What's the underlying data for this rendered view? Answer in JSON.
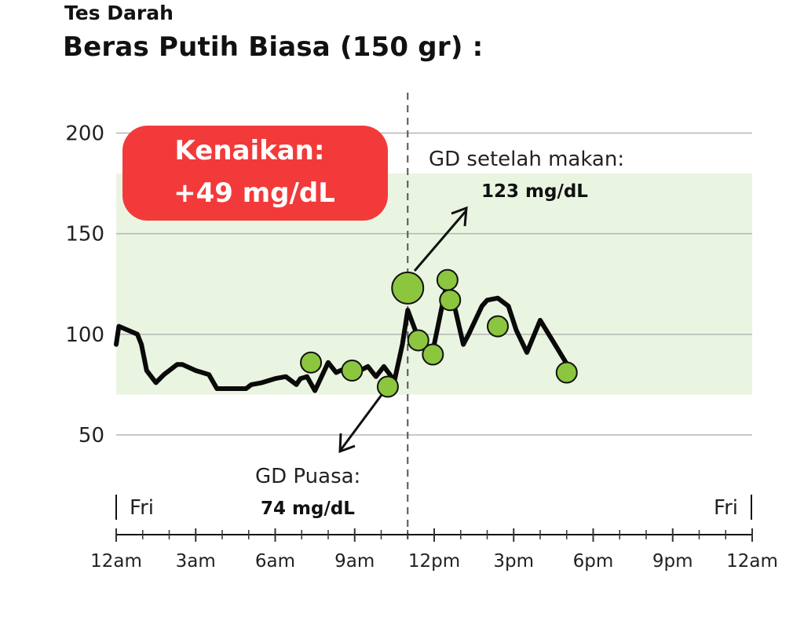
{
  "header": {
    "supertitle": "Tes Darah",
    "title": "Beras Putih Biasa (150 gr) :"
  },
  "colors": {
    "line": "#0a0a0a",
    "marker_fill": "#8cc63f",
    "target_band": "#eaf5e1",
    "badge": "#f23a3a",
    "grid": "#b5b5b5"
  },
  "chart_data": {
    "type": "line",
    "title": "Beras Putih Biasa (150 gr) :",
    "xlabel": "",
    "ylabel": "",
    "ylim": [
      40,
      200
    ],
    "yticks": [
      50,
      100,
      150,
      200
    ],
    "ytick_labels": [
      "50",
      "100",
      "150",
      "200"
    ],
    "xlim": [
      0,
      24
    ],
    "xticks": [
      0,
      3,
      6,
      9,
      12,
      15,
      18,
      21,
      24
    ],
    "xtick_labels": [
      "12am",
      "3am",
      "6am",
      "9am",
      "12pm",
      "3pm",
      "6pm",
      "9pm",
      "12am"
    ],
    "day_labels": [
      "Fri",
      "Fri"
    ],
    "grid": true,
    "target_range": [
      70,
      180
    ],
    "meal_time": 11.0,
    "series": [
      {
        "x": [
          0,
          0.1,
          0.8,
          0.95,
          1.15,
          1.5,
          1.8,
          2.3,
          2.5,
          3,
          3.5,
          3.8,
          4.1,
          4.5,
          4.9,
          5.1,
          5.5,
          6,
          6.4,
          6.8,
          6.95,
          7.2,
          7.5,
          8,
          8.3,
          8.8,
          9.2,
          9.5,
          9.8,
          10.1,
          10.5,
          10.8,
          11.0,
          11.4,
          11.75,
          12.0,
          12.5,
          12.8,
          13.1,
          13.3,
          13.8,
          14.0,
          14.4,
          14.8,
          15.1,
          15.5,
          16.0,
          16.6,
          17.2
        ],
        "values": [
          95,
          104,
          100,
          95,
          82,
          76,
          80,
          85,
          85,
          82,
          80,
          73,
          73,
          73,
          73,
          75,
          76,
          78,
          79,
          75,
          78,
          79,
          72,
          86,
          81,
          84,
          82,
          84,
          79,
          84,
          77,
          95,
          112,
          98,
          90,
          95,
          127,
          112,
          95,
          100,
          114,
          117,
          118,
          114,
          102,
          91,
          107,
          94,
          81
        ]
      }
    ],
    "markers": [
      {
        "x": 7.35,
        "y": 86
      },
      {
        "x": 8.9,
        "y": 82
      },
      {
        "x": 10.25,
        "y": 74
      },
      {
        "x": 11.0,
        "y": 123,
        "large": true
      },
      {
        "x": 11.4,
        "y": 97
      },
      {
        "x": 11.95,
        "y": 90
      },
      {
        "x": 12.5,
        "y": 127
      },
      {
        "x": 12.6,
        "y": 117
      },
      {
        "x": 14.4,
        "y": 104
      },
      {
        "x": 17.0,
        "y": 81
      }
    ],
    "annotations": {
      "rise_badge": {
        "line1": "Kenaikan:",
        "line2": "+49 mg/dL"
      },
      "post_meal": {
        "label": "GD setelah makan:",
        "value": "123 mg/dL"
      },
      "fasting": {
        "label": "GD Puasa:",
        "value": "74 mg/dL"
      }
    }
  }
}
